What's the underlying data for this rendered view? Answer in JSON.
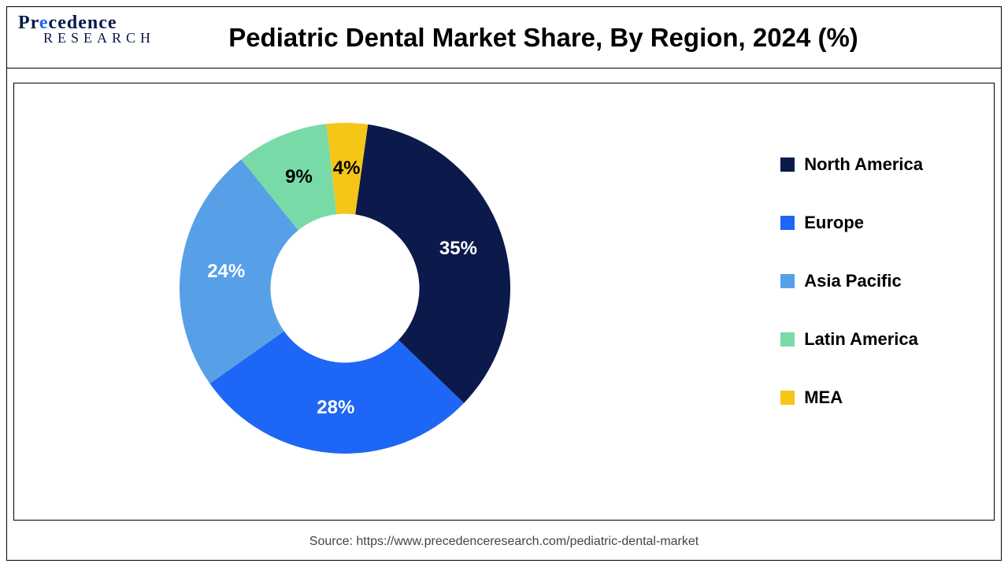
{
  "logo": {
    "line1_pre": "Pr",
    "line1_mid": "e",
    "line1_post": "cedence",
    "line2": "RESEARCH"
  },
  "title": "Pediatric Dental Market Share, By Region, 2024 (%)",
  "source": "Source: https://www.precedenceresearch.com/pediatric-dental-market",
  "chart": {
    "type": "donut",
    "inner_radius_ratio": 0.45,
    "background_color": "#ffffff",
    "start_angle_deg": 8,
    "label_fontsize": 24,
    "label_color_light": "#ffffff",
    "label_color_dark": "#000000",
    "slices": [
      {
        "label": "North America",
        "value": 35,
        "color": "#0b1a4a",
        "text": "35%",
        "text_color": "light"
      },
      {
        "label": "Europe",
        "value": 28,
        "color": "#1e66f5",
        "text": "28%",
        "text_color": "light"
      },
      {
        "label": "Asia Pacific",
        "value": 24,
        "color": "#57a0e8",
        "text": "24%",
        "text_color": "light"
      },
      {
        "label": "Latin America",
        "value": 9,
        "color": "#78dba7",
        "text": "9%",
        "text_color": "dark"
      },
      {
        "label": "MEA",
        "value": 4,
        "color": "#f5c518",
        "text": "4%",
        "text_color": "dark"
      }
    ]
  },
  "legend": {
    "fontsize": 22,
    "swatch_size": 18,
    "items": [
      {
        "label": "North America",
        "color": "#0b1a4a"
      },
      {
        "label": "Europe",
        "color": "#1e66f5"
      },
      {
        "label": "Asia Pacific",
        "color": "#57a0e8"
      },
      {
        "label": "Latin America",
        "color": "#78dba7"
      },
      {
        "label": "MEA",
        "color": "#f5c518"
      }
    ]
  }
}
